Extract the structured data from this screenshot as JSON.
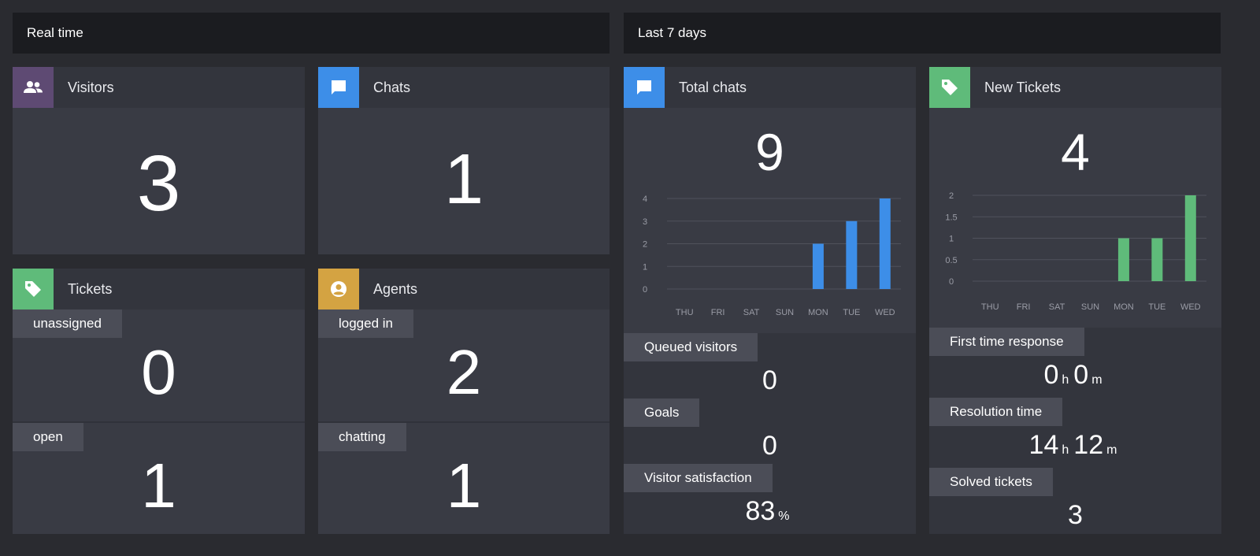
{
  "sections": {
    "realtime_label": "Real time",
    "last7_label": "Last 7 days"
  },
  "colors": {
    "visitors": "#5e4a73",
    "chats": "#3d8ee8",
    "tickets": "#5fbb7a",
    "agents": "#d4a342",
    "chart_blue": "#3d8ee8",
    "chart_green": "#5fbb7a"
  },
  "realtime": {
    "visitors": {
      "title": "Visitors",
      "value": "3",
      "icon": "people-icon"
    },
    "chats": {
      "title": "Chats",
      "value": "1",
      "icon": "chat-bubble-icon"
    },
    "tickets": {
      "title": "Tickets",
      "icon": "tag-icon",
      "unassigned_label": "unassigned",
      "unassigned_value": "0",
      "open_label": "open",
      "open_value": "1"
    },
    "agents": {
      "title": "Agents",
      "icon": "user-circle-icon",
      "logged_in_label": "logged in",
      "logged_in_value": "2",
      "chatting_label": "chatting",
      "chatting_value": "1"
    }
  },
  "last7": {
    "total_chats": {
      "title": "Total chats",
      "value": "9",
      "icon": "chat-bubble-icon",
      "queued_label": "Queued visitors",
      "queued_value": "0",
      "goals_label": "Goals",
      "goals_value": "0",
      "satisfaction_label": "Visitor satisfaction",
      "satisfaction_value": "83",
      "satisfaction_unit": "%"
    },
    "new_tickets": {
      "title": "New Tickets",
      "value": "4",
      "icon": "tag-icon",
      "first_response_label": "First time response",
      "first_response_h": "0",
      "first_response_m": "0",
      "resolution_label": "Resolution time",
      "resolution_h": "14",
      "resolution_m": "12",
      "solved_label": "Solved tickets",
      "solved_value": "3",
      "unit_h": "h",
      "unit_m": "m"
    }
  },
  "chart_data": [
    {
      "type": "bar",
      "categories": [
        "THU",
        "FRI",
        "SAT",
        "SUN",
        "MON",
        "TUE",
        "WED"
      ],
      "values": [
        0,
        0,
        0,
        0,
        2,
        3,
        4
      ],
      "yticks": [
        "0",
        "1",
        "2",
        "3",
        "4"
      ],
      "ylim": [
        0,
        4
      ],
      "grid": true,
      "color": "#3d8ee8"
    },
    {
      "type": "bar",
      "categories": [
        "THU",
        "FRI",
        "SAT",
        "SUN",
        "MON",
        "TUE",
        "WED"
      ],
      "values": [
        0,
        0,
        0,
        0,
        1,
        1,
        2
      ],
      "yticks": [
        "0",
        "0.5",
        "1",
        "1.5",
        "2"
      ],
      "ylim": [
        0,
        2
      ],
      "grid": true,
      "color": "#5fbb7a"
    }
  ]
}
